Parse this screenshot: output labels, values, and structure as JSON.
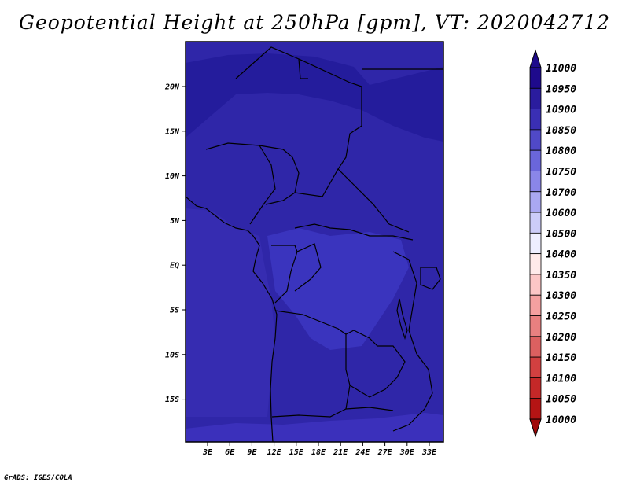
{
  "title": "Geopotential Height at 250hPa [gpm], VT: 2020042712",
  "credit": "GrADS: IGES/COLA",
  "map": {
    "lat_labels": [
      "20N",
      "15N",
      "10N",
      "5N",
      "EQ",
      "5S",
      "10S",
      "15S"
    ],
    "lon_labels": [
      "3E",
      "6E",
      "9E",
      "12E",
      "15E",
      "18E",
      "21E",
      "24E",
      "27E",
      "30E",
      "33E"
    ],
    "colors": {
      "ocean_shade": "#3d32b8",
      "main_field": "#2f26a8",
      "north_band": "#241c9c",
      "central_basin": "#3a34be",
      "south_band": "#3b30bb",
      "boundary": "#000000"
    }
  },
  "colorbar": {
    "levels": [
      "11000",
      "10950",
      "10900",
      "10850",
      "10800",
      "10750",
      "10700",
      "10600",
      "10500",
      "10400",
      "10350",
      "10300",
      "10250",
      "10200",
      "10150",
      "10100",
      "10050",
      "10000"
    ],
    "colors": [
      "#1e0a8c",
      "#2a1c9e",
      "#3a2fb4",
      "#5049c8",
      "#6a66da",
      "#8a86e8",
      "#aaa8f2",
      "#ccccf8",
      "#eeeeff",
      "#ffeaea",
      "#fcc6c6",
      "#f4a0a0",
      "#e88080",
      "#dc6060",
      "#d24040",
      "#c42828",
      "#b41414",
      "#a00808"
    ]
  }
}
